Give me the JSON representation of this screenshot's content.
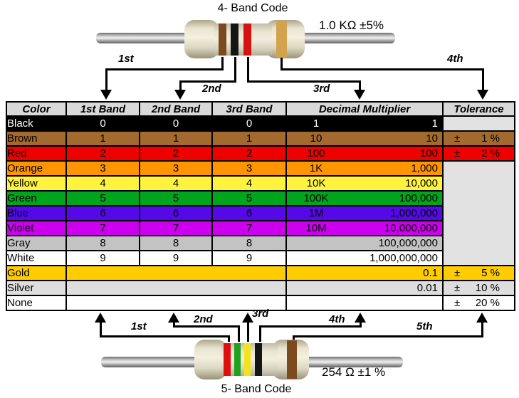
{
  "top_resistor": {
    "title": "4- Band Code",
    "value_label": "1.0 KΩ  ±5%",
    "bands": [
      {
        "name": "brown",
        "color": "#7C4A1F"
      },
      {
        "name": "black",
        "color": "#151515"
      },
      {
        "name": "red",
        "color": "#D61212"
      },
      {
        "name": "gold",
        "color": "#D2A24E"
      }
    ],
    "arrow_labels": [
      "1st",
      "2nd",
      "3rd",
      "4th"
    ]
  },
  "bottom_resistor": {
    "title": "5- Band Code",
    "value_label": "254 Ω  ±1 %",
    "bands": [
      {
        "name": "red",
        "color": "#DD0F0F"
      },
      {
        "name": "green",
        "color": "#1FA11F"
      },
      {
        "name": "yellow",
        "color": "#F2E41C"
      },
      {
        "name": "black",
        "color": "#151515"
      },
      {
        "name": "brown",
        "color": "#7C4A1F"
      }
    ],
    "arrow_labels": [
      "1st",
      "2nd",
      "3rd",
      "4th",
      "5th"
    ]
  },
  "table": {
    "headers": [
      "Color",
      "1st Band",
      "2nd Band",
      "3rd Band",
      "Decimal Multiplier",
      "Tolerance"
    ],
    "header_bg": "#D9D9D9",
    "empty_tolerance_bg": "#E2E2E2",
    "rows": [
      {
        "color": "Black",
        "bg": "#000000",
        "fg": "#FFFFFF",
        "band1": "0",
        "band2": "0",
        "band3": "0",
        "mult_short": "1",
        "mult_full": "1",
        "tol_cell": "empty"
      },
      {
        "color": "Brown",
        "bg": "#A26A2F",
        "fg": "#000000",
        "band1": "1",
        "band2": "1",
        "band3": "1",
        "mult_short": "10",
        "mult_full": "10",
        "tol_cell": "value",
        "tol_sign": "±",
        "tol_value": "1 %"
      },
      {
        "color": "Red",
        "bg": "#EE0000",
        "fg": "#000000",
        "band1": "2",
        "band2": "2",
        "band3": "2",
        "mult_short": "100",
        "mult_full": "100",
        "tol_cell": "value",
        "tol_sign": "±",
        "tol_value": "2 %"
      },
      {
        "color": "Orange",
        "bg": "#FF9500",
        "fg": "#000000",
        "band1": "3",
        "band2": "3",
        "band3": "3",
        "mult_short": "1K",
        "mult_full": "1,000",
        "tol_cell": "merged_start"
      },
      {
        "color": "Yellow",
        "bg": "#FFF33E",
        "fg": "#000000",
        "band1": "4",
        "band2": "4",
        "band3": "4",
        "mult_short": "10K",
        "mult_full": "10,000",
        "tol_cell": "none"
      },
      {
        "color": "Green",
        "bg": "#00A41D",
        "fg": "#000000",
        "band1": "5",
        "band2": "5",
        "band3": "5",
        "mult_short": "100K",
        "mult_full": "100,000",
        "tol_cell": "none"
      },
      {
        "color": "Blue",
        "bg": "#5409E6",
        "fg": "#000000",
        "band1": "6",
        "band2": "6",
        "band3": "6",
        "mult_short": "1M",
        "mult_full": "1,000,000",
        "tol_cell": "none"
      },
      {
        "color": "Violet",
        "bg": "#CC00EE",
        "fg": "#000000",
        "band1": "7",
        "band2": "7",
        "band3": "7",
        "mult_short": "10M",
        "mult_full": "10,000,000",
        "tol_cell": "none"
      },
      {
        "color": "Gray",
        "bg": "#C3C3C3",
        "fg": "#000000",
        "band1": "8",
        "band2": "8",
        "band3": "8",
        "mult_short": "",
        "mult_full": "100,000,000",
        "tol_cell": "none"
      },
      {
        "color": "White",
        "bg": "#FFFFFF",
        "fg": "#000000",
        "band1": "9",
        "band2": "9",
        "band3": "9",
        "mult_short": "",
        "mult_full": "1,000,000,000",
        "tol_cell": "none"
      },
      {
        "color": "Gold",
        "bg": "#FFCC00",
        "fg": "#000000",
        "merged_bands": true,
        "mult_short": "",
        "mult_full": "0.1",
        "tol_cell": "value",
        "tol_sign": "±",
        "tol_value": "5 %"
      },
      {
        "color": "Silver",
        "bg": "#DEDEDE",
        "fg": "#000000",
        "merged_bands": true,
        "mult_short": "",
        "mult_full": "0.01",
        "tol_cell": "value",
        "tol_sign": "±",
        "tol_value": "10 %"
      },
      {
        "color": "None",
        "bg": "#FFFFFF",
        "fg": "#000000",
        "merged_bands": true,
        "mult_short": "",
        "mult_full": "",
        "tol_cell": "value",
        "tol_sign": "±",
        "tol_value": "20 %"
      }
    ]
  }
}
